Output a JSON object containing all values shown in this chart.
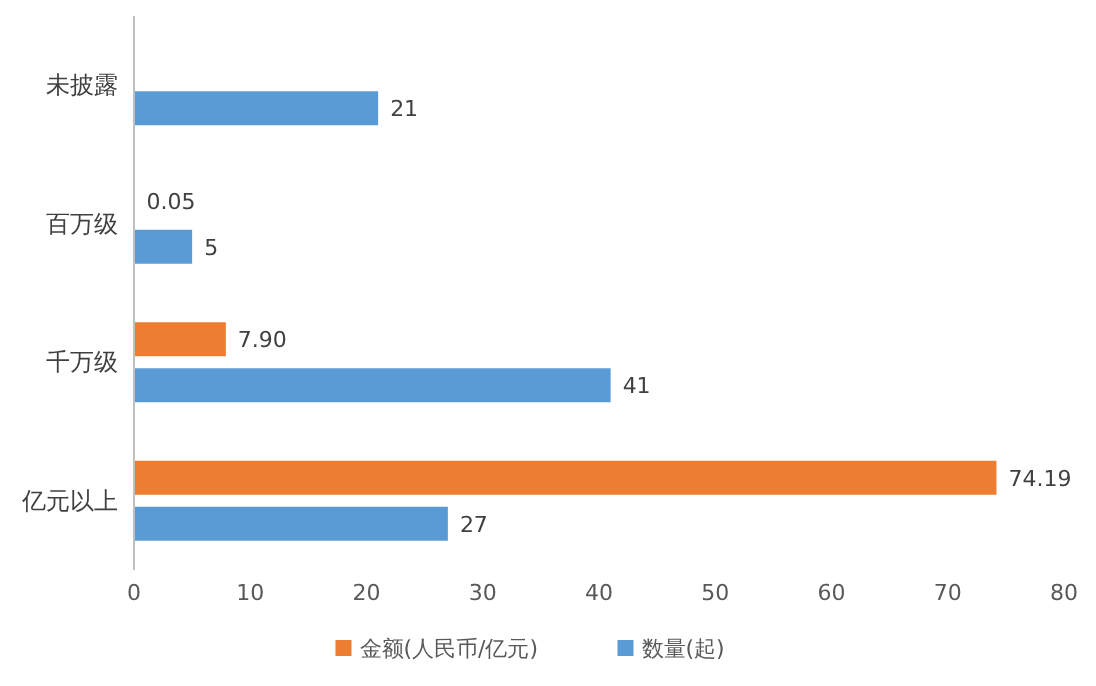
{
  "chart_data": {
    "type": "bar",
    "orientation": "horizontal",
    "categories": [
      "未披露",
      "百万级",
      "千万级",
      "亿元以上"
    ],
    "series": [
      {
        "name": "金额(人民币/亿元)",
        "color": "#ed7d31",
        "values": [
          null,
          0.05,
          7.9,
          74.19
        ],
        "value_labels": [
          null,
          "0.05",
          "7.90",
          "74.19"
        ]
      },
      {
        "name": "数量(起)",
        "color": "#5b9bd5",
        "values": [
          21,
          5,
          41,
          27
        ],
        "value_labels": [
          "21",
          "5",
          "41",
          "27"
        ]
      }
    ],
    "xlim": [
      0,
      80
    ],
    "xticks": [
      0,
      10,
      20,
      30,
      40,
      50,
      60,
      70,
      80
    ],
    "legend": "bottom"
  }
}
